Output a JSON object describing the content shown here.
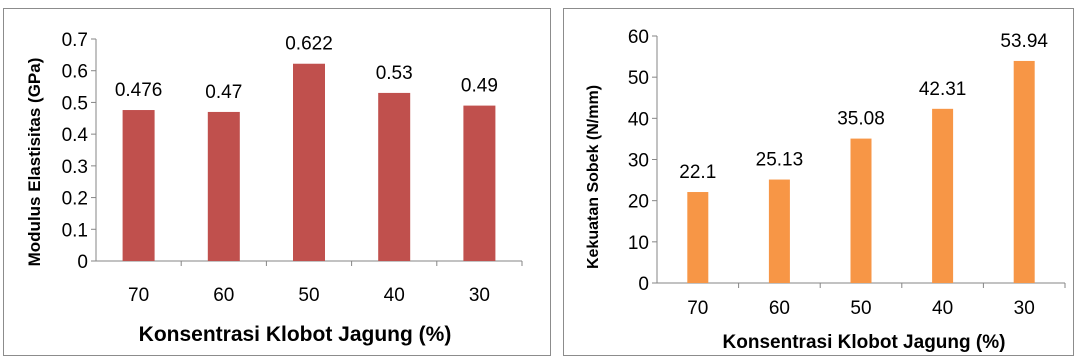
{
  "chart_data": [
    {
      "type": "bar",
      "title": "",
      "categories": [
        "70",
        "60",
        "50",
        "40",
        "30"
      ],
      "values": [
        0.476,
        0.47,
        0.622,
        0.53,
        0.49
      ],
      "data_labels": [
        "0.476",
        "0.47",
        "0.622",
        "0.53",
        "0.49"
      ],
      "xlabel": "Konsentrasi Klobot Jagung (%)",
      "ylabel": "Modulus Elastisitas (GPa)",
      "ylim": [
        0,
        0.7
      ],
      "yticks": [
        0,
        0.1,
        0.2,
        0.3,
        0.4,
        0.5,
        0.6,
        0.7
      ],
      "ytick_labels": [
        "0",
        "0.1",
        "0.2",
        "0.3",
        "0.4",
        "0.5",
        "0.6",
        "0.7"
      ],
      "bar_color": "#c0504d",
      "grid": false,
      "legend": "none"
    },
    {
      "type": "bar",
      "title": "",
      "categories": [
        "70",
        "60",
        "50",
        "40",
        "30"
      ],
      "values": [
        22.1,
        25.13,
        35.08,
        42.31,
        53.94
      ],
      "data_labels": [
        "22.1",
        "25.13",
        "35.08",
        "42.31",
        "53.94"
      ],
      "xlabel": "Konsentrasi Klobot Jagung (%)",
      "ylabel": "Kekuatan Sobek (N/mm)",
      "ylim": [
        0,
        60
      ],
      "yticks": [
        0,
        10,
        20,
        30,
        40,
        50,
        60
      ],
      "ytick_labels": [
        "0",
        "10",
        "20",
        "30",
        "40",
        "50",
        "60"
      ],
      "bar_color": "#f79646",
      "grid": false,
      "legend": "none"
    }
  ]
}
